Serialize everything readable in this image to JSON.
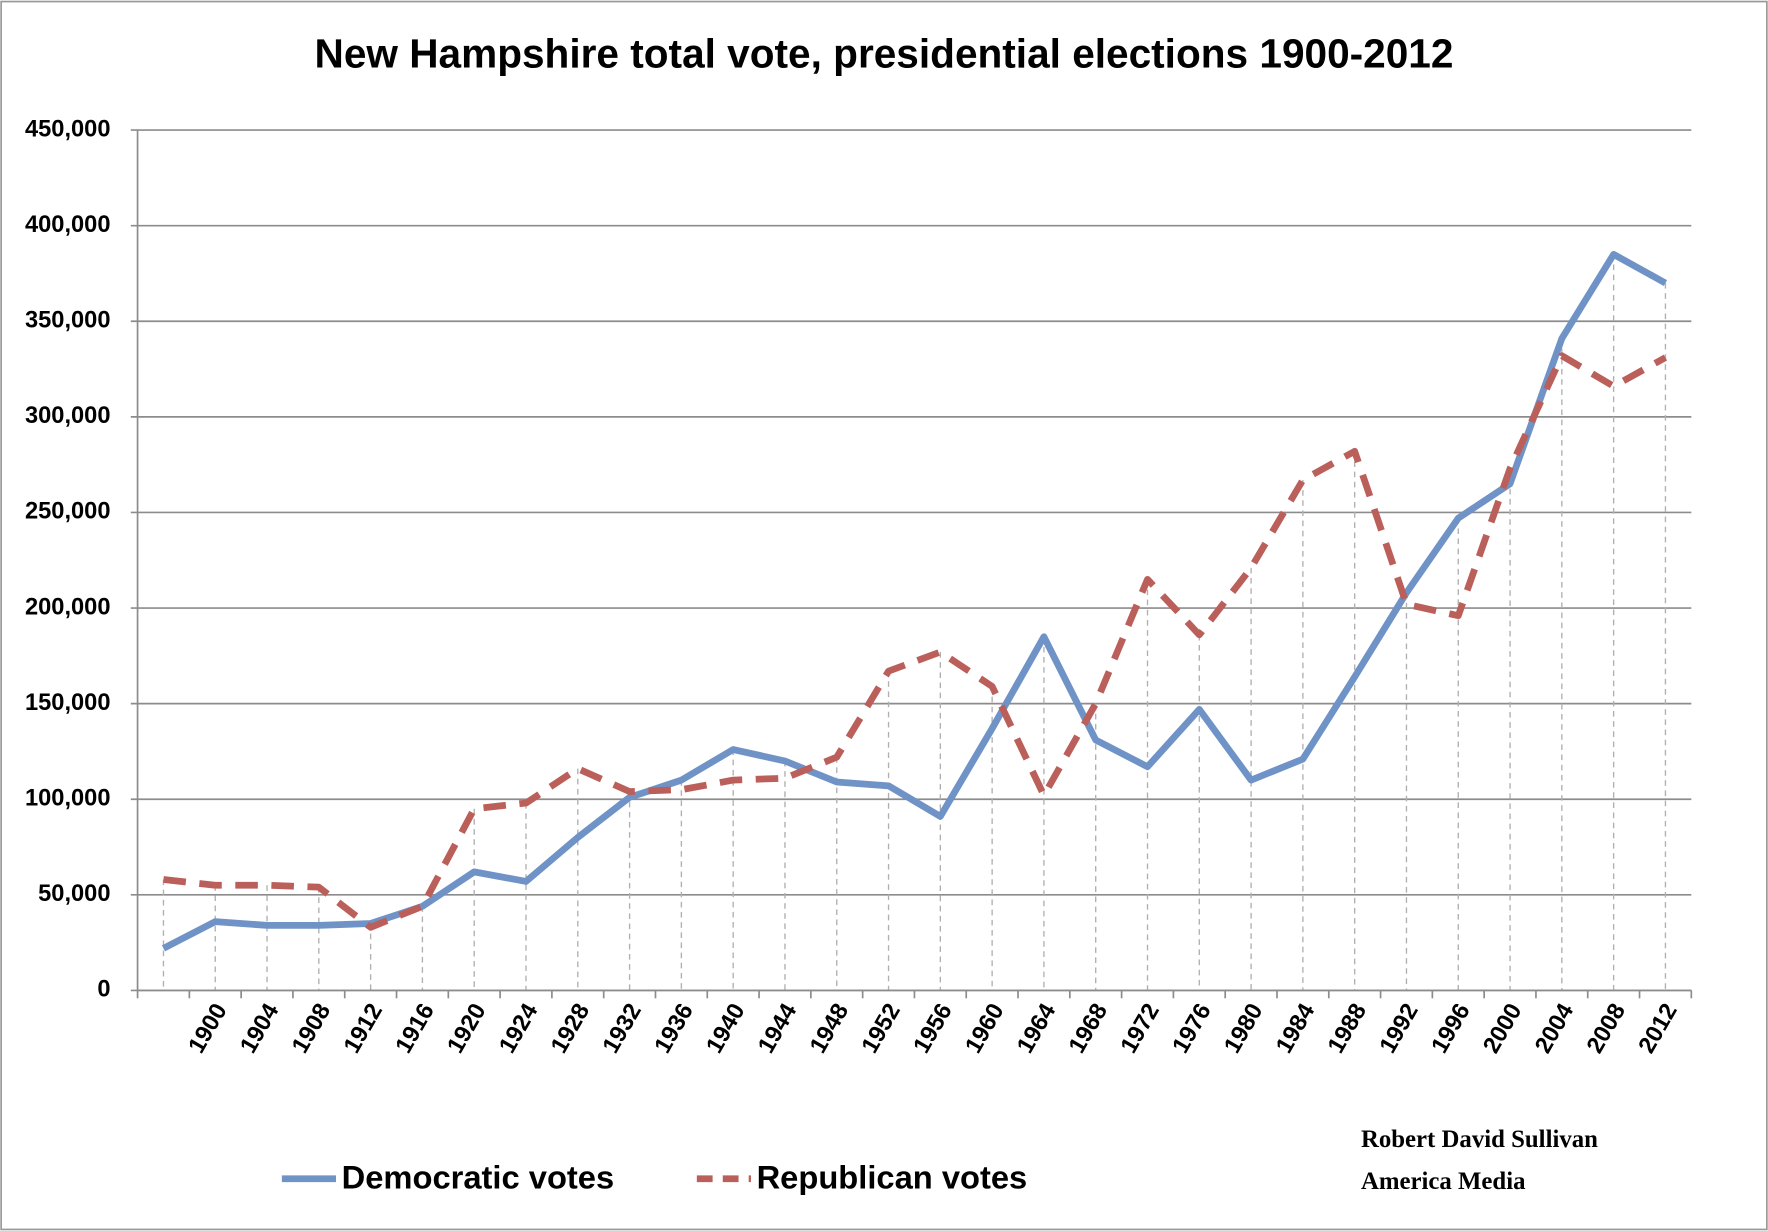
{
  "chart_data": {
    "type": "line",
    "title": "New Hampshire total vote, presidential elections 1900-2012",
    "categories": [
      null,
      "1900",
      "1904",
      "1908",
      "1912",
      "1916",
      "1920",
      "1924",
      "1928",
      "1932",
      "1936",
      "1940",
      "1944",
      "1948",
      "1952",
      "1956",
      "1960",
      "1964",
      "1968",
      "1972",
      "1976",
      "1980",
      "1984",
      "1988",
      "1992",
      "1996",
      "2000",
      "2004",
      "2008",
      "2012"
    ],
    "series": [
      {
        "name": "Democratic votes",
        "color": "#6f93c6",
        "dash": false,
        "values": [
          22000,
          36000,
          34000,
          34000,
          35000,
          44000,
          62000,
          57000,
          80000,
          101000,
          110000,
          126000,
          120000,
          109000,
          107000,
          91000,
          137000,
          185000,
          131000,
          117000,
          147000,
          110000,
          121000,
          164000,
          208000,
          247000,
          265000,
          341000,
          385000,
          370000
        ]
      },
      {
        "name": "Republican votes",
        "color": "#bb5f5b",
        "dash": true,
        "values": [
          58000,
          55000,
          55000,
          54000,
          33000,
          44000,
          95000,
          98000,
          116000,
          104000,
          105000,
          110000,
          111000,
          122000,
          167000,
          177000,
          159000,
          102000,
          150000,
          215000,
          186000,
          221000,
          267000,
          282000,
          202000,
          196000,
          273000,
          332000,
          316000,
          331000
        ]
      }
    ],
    "ylim": [
      0,
      450000
    ],
    "yticks": [
      0,
      {
        "value": 50000,
        "label": "50,000"
      },
      {
        "value": 100000,
        "label": "100,000"
      },
      {
        "value": 150000,
        "label": "150,000"
      },
      {
        "value": 200000,
        "label": "200,000"
      },
      {
        "value": 250000,
        "label": "250,000"
      },
      {
        "value": 300000,
        "label": "300,000"
      },
      {
        "value": 350000,
        "label": "350,000"
      },
      {
        "value": 400000,
        "label": "400,000"
      },
      {
        "value": 450000,
        "label": "450,000"
      }
    ],
    "grid": true,
    "legend": "bottom",
    "annotations": [
      "Robert David Sullivan",
      "America Media"
    ]
  }
}
